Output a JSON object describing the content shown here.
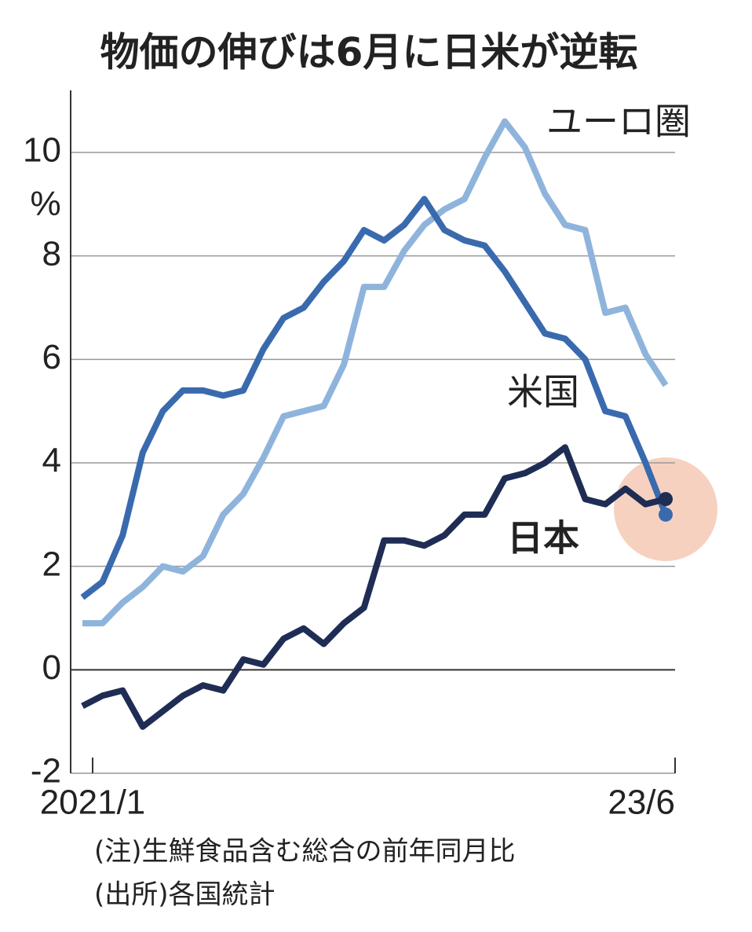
{
  "chart_data": {
    "type": "line",
    "title": "物価の伸びは6月に日米が逆転",
    "y_unit": "%",
    "categories": [
      "2021/1",
      null,
      null,
      null,
      null,
      null,
      null,
      null,
      null,
      null,
      null,
      null,
      null,
      null,
      null,
      null,
      null,
      null,
      null,
      null,
      null,
      null,
      null,
      null,
      null,
      null,
      null,
      null,
      null,
      "23/6"
    ],
    "series": [
      {
        "name": "ユーロ圏",
        "color": "#8fb4dc",
        "values": [
          0.9,
          0.9,
          1.3,
          1.6,
          2.0,
          1.9,
          2.2,
          3.0,
          3.4,
          4.1,
          4.9,
          5.0,
          5.1,
          5.9,
          7.4,
          7.4,
          8.1,
          8.6,
          8.9,
          9.1,
          9.9,
          10.6,
          10.1,
          9.2,
          8.6,
          8.5,
          6.9,
          7.0,
          6.1,
          5.5
        ]
      },
      {
        "name": "米国",
        "color": "#3a6aae",
        "values": [
          1.4,
          1.7,
          2.6,
          4.2,
          5.0,
          5.4,
          5.4,
          5.3,
          5.4,
          6.2,
          6.8,
          7.0,
          7.5,
          7.9,
          8.5,
          8.3,
          8.6,
          9.1,
          8.5,
          8.3,
          8.2,
          7.7,
          7.1,
          6.5,
          6.4,
          6.0,
          5.0,
          4.9,
          4.0,
          3.0
        ]
      },
      {
        "name": "日本",
        "color": "#1f2d55",
        "values": [
          -0.7,
          -0.5,
          -0.4,
          -1.1,
          -0.8,
          -0.5,
          -0.3,
          -0.4,
          0.2,
          0.1,
          0.6,
          0.8,
          0.5,
          0.9,
          1.2,
          2.5,
          2.5,
          2.4,
          2.6,
          3.0,
          3.0,
          3.7,
          3.8,
          4.0,
          4.3,
          3.3,
          3.2,
          3.5,
          3.2,
          3.3
        ]
      }
    ],
    "ylim": [
      -2,
      11.2
    ],
    "yticks": [
      -2,
      0,
      2,
      4,
      6,
      8,
      10
    ],
    "grid": true,
    "notes": [
      "(注)生鮮食品含む総合の前年同月比",
      "(出所)各国統計"
    ]
  }
}
